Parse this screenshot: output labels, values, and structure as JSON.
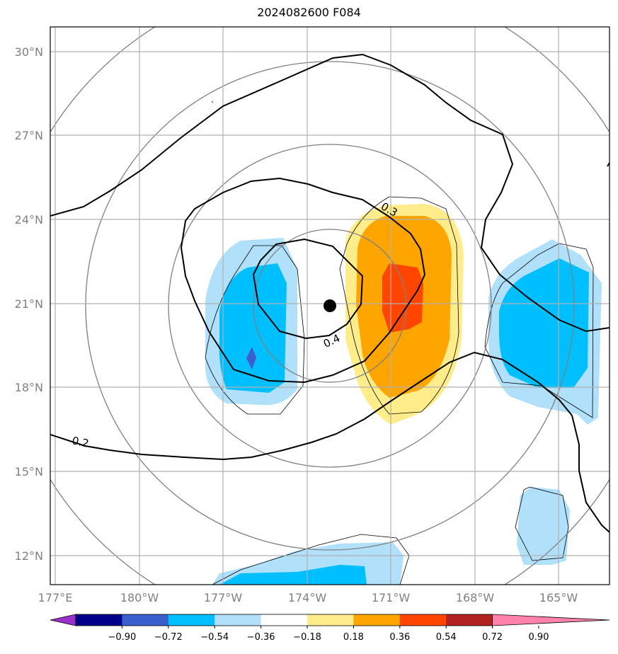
{
  "title": "2024082600 F084",
  "lat_labels": [
    "30°N",
    "27°N",
    "24°N",
    "21°N",
    "18°N",
    "15°N",
    "12°N"
  ],
  "lon_labels": [
    "177°E",
    "180°W",
    "177°W",
    "174°W",
    "171°W",
    "168°W",
    "165°W"
  ],
  "contour_labels": [
    "0.3",
    "0.4",
    "0.2"
  ],
  "colorbar": {
    "ticks": [
      "−0.90",
      "−0.72",
      "−0.54",
      "−0.36",
      "−0.18",
      "0.18",
      "0.36",
      "0.54",
      "0.72",
      "0.90"
    ],
    "colors": [
      "#9932CC",
      "#00008B",
      "#3A5FCD",
      "#00BFFF",
      "#B0E0FA",
      "#FFFFFF",
      "#FFEC8B",
      "#FFA500",
      "#FF4500",
      "#B22222",
      "#FF82AB"
    ]
  },
  "storm_center": {
    "lat": 20.9,
    "lon": -173.3
  },
  "palette": {
    "light_blue": "#B0E0FA",
    "blue": "#00BFFF",
    "royal": "#3A5FCD",
    "light_yellow": "#FFEC8B",
    "orange": "#FFA500",
    "red_orange": "#FF4500"
  }
}
